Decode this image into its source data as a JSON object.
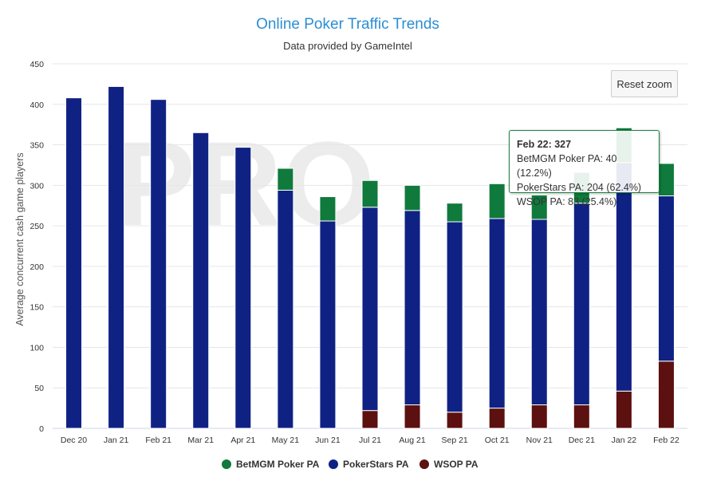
{
  "chart_data": {
    "type": "bar",
    "stacked": true,
    "title": "Online Poker Traffic Trends",
    "subtitle": "Data provided by GameIntel",
    "xlabel": "",
    "ylabel": "Average concurrent cash game players",
    "ylim": [
      0,
      450
    ],
    "yticks": [
      0,
      50,
      100,
      150,
      200,
      250,
      300,
      350,
      400,
      450
    ],
    "grid": true,
    "legend_position": "bottom",
    "categories": [
      "Dec 20",
      "Jan 21",
      "Feb 21",
      "Mar 21",
      "Apr 21",
      "May 21",
      "Jun 21",
      "Jul 21",
      "Aug 21",
      "Sep 21",
      "Oct 21",
      "Nov 21",
      "Dec 21",
      "Jan 22",
      "Feb 22"
    ],
    "series": [
      {
        "name": "WSOP PA",
        "color": "#5c1010",
        "values": [
          0,
          0,
          0,
          0,
          0,
          0,
          0,
          22,
          29,
          20,
          25,
          29,
          29,
          46,
          83
        ]
      },
      {
        "name": "PokerStars PA",
        "color": "#0f2284",
        "values": [
          408,
          422,
          406,
          365,
          347,
          294,
          256,
          251,
          240,
          235,
          234,
          229,
          249,
          282,
          204
        ]
      },
      {
        "name": "BetMGM Poker PA",
        "color": "#0f7a3c",
        "values": [
          0,
          0,
          0,
          0,
          0,
          27,
          30,
          33,
          31,
          23,
          43,
          30,
          38,
          43,
          40
        ]
      }
    ],
    "legend": [
      "BetMGM Poker PA",
      "PokerStars PA",
      "WSOP PA"
    ]
  },
  "controls": {
    "reset_zoom_label": "Reset zoom"
  },
  "tooltip": {
    "header": "Feb 22: 327",
    "lines": [
      "BetMGM Poker PA: 40 (12.2%)",
      "PokerStars PA: 204 (62.4%)",
      "WSOP PA: 83 (25.4%)"
    ]
  },
  "watermark": {
    "text": "PRO"
  }
}
